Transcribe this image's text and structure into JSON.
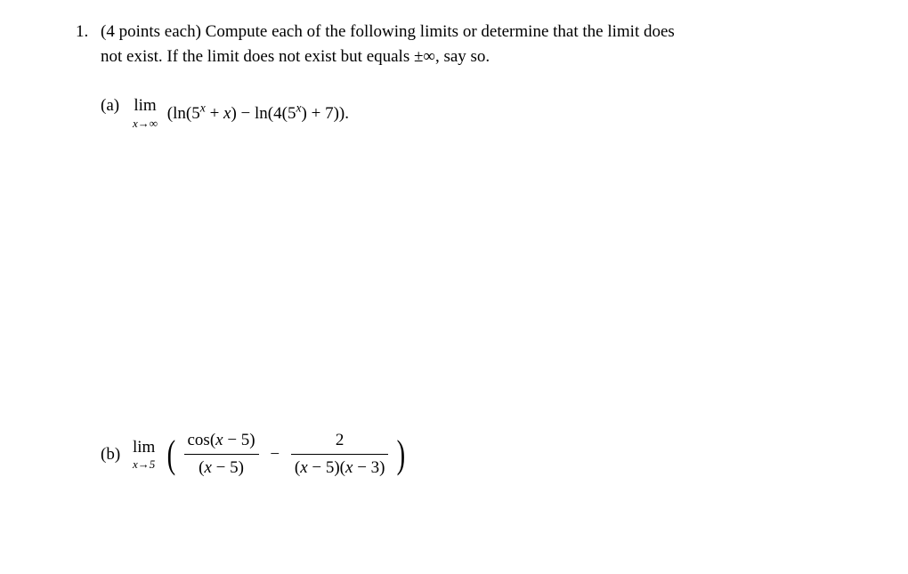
{
  "problem": {
    "number": "1.",
    "points_text": "(4 points each)",
    "intro_text_1": " Compute each of the following limits or determine that the limit does",
    "intro_text_2": "not exist. If the limit does not exist but equals ±∞, say so."
  },
  "part_a": {
    "label": "(a)",
    "lim_top": "lim",
    "lim_sub": "x→∞",
    "expr_open": "(ln(5",
    "sup1": "x",
    "expr_mid1": " + ",
    "x1": "x",
    "expr_mid2": ") − ln(4(5",
    "sup2": "x",
    "expr_mid3": ") + 7))",
    "period": "."
  },
  "part_b": {
    "label": "(b)",
    "lim_top": "lim",
    "lim_sub": "x→5",
    "frac1_num_pre": "cos(",
    "frac1_num_x": "x",
    "frac1_num_post": " − 5)",
    "frac1_den_open": "(",
    "frac1_den_x": "x",
    "frac1_den_post": " − 5)",
    "minus": "−",
    "frac2_num": "2",
    "frac2_den_open": "(",
    "frac2_den_x1": "x",
    "frac2_den_mid": " − 5)(",
    "frac2_den_x2": "x",
    "frac2_den_post": " − 3)"
  }
}
